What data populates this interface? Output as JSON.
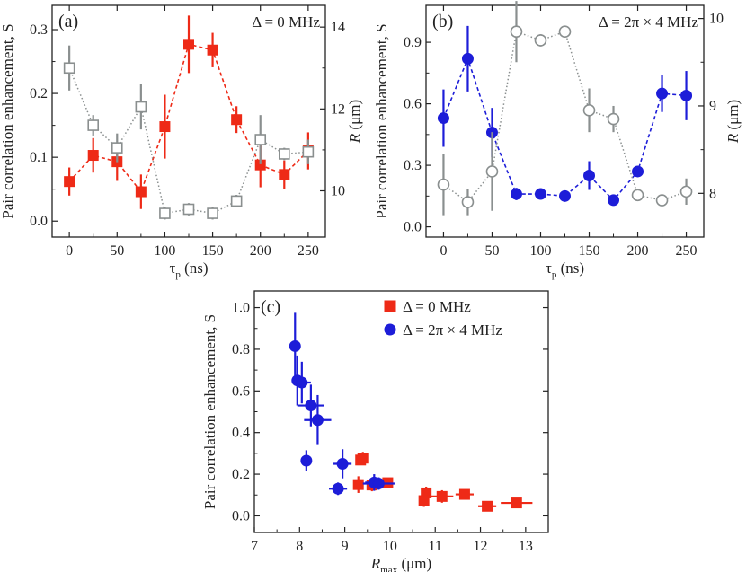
{
  "colors": {
    "red": "#ee2a17",
    "blue": "#1d1dd8",
    "gray": "#8a8f8f",
    "axis": "#222222"
  },
  "chart_data": [
    {
      "id": "a",
      "type": "scatter",
      "panel_label": "(a)",
      "annotation": "Δ = 0 MHz",
      "xlabel": {
        "main": "τ",
        "sub": "p",
        "unit": " (ns)"
      },
      "ylabel": "Pair correlation enhancement, S",
      "y2label": {
        "italic": "R",
        "unit": " (μm)"
      },
      "xlim": [
        -18,
        268
      ],
      "ylim": [
        -0.025,
        0.338
      ],
      "y2lim": [
        8.87,
        14.53
      ],
      "xticks": [
        0,
        50,
        100,
        150,
        200,
        250
      ],
      "yticks": [
        0.0,
        0.1,
        0.2,
        0.3
      ],
      "ytick_labels": [
        "0.0",
        "0.1",
        "0.2",
        "0.3"
      ],
      "y2ticks": [
        10,
        12,
        14
      ],
      "y2tick_labels": [
        "10",
        "12",
        "14"
      ],
      "series": [
        {
          "name": "S",
          "axis": "left",
          "marker": "square-filled",
          "color": "#ee2a17",
          "line": "dashed",
          "x": [
            0,
            25,
            50,
            75,
            100,
            125,
            150,
            175,
            200,
            225,
            250
          ],
          "y": [
            0.062,
            0.103,
            0.093,
            0.046,
            0.148,
            0.277,
            0.268,
            0.159,
            0.088,
            0.073,
            0.11
          ],
          "yerr": [
            0.022,
            0.027,
            0.03,
            0.027,
            0.05,
            0.045,
            0.027,
            0.021,
            0.035,
            0.022,
            0.029
          ]
        },
        {
          "name": "R",
          "axis": "right",
          "marker": "square-open",
          "color": "#8a8f8f",
          "line": "dotted",
          "x": [
            0,
            25,
            50,
            75,
            100,
            125,
            150,
            175,
            200,
            225,
            250
          ],
          "y": [
            13.0,
            11.6,
            11.05,
            12.05,
            9.45,
            9.55,
            9.45,
            9.75,
            11.25,
            10.9,
            10.95
          ],
          "yerr": [
            0.55,
            0.25,
            0.35,
            0.55,
            0.15,
            0.15,
            0.15,
            0.15,
            0.6,
            0.15,
            0.3
          ]
        }
      ]
    },
    {
      "id": "b",
      "type": "scatter",
      "panel_label": "(b)",
      "annotation": "Δ = 2π × 4 MHz",
      "xlabel": {
        "main": "τ",
        "sub": "p",
        "unit": " (ns)"
      },
      "ylabel": "Pair correlation enhancement, S",
      "y2label": {
        "italic": "R",
        "unit": " (μm)"
      },
      "xlim": [
        -18,
        268
      ],
      "ylim": [
        -0.05,
        1.08
      ],
      "y2lim": [
        7.5,
        10.15
      ],
      "xticks": [
        0,
        50,
        100,
        150,
        200,
        250
      ],
      "yticks": [
        0.0,
        0.3,
        0.6,
        0.9
      ],
      "ytick_labels": [
        "0.0",
        "0.3",
        "0.6",
        "0.9"
      ],
      "y2ticks": [
        8,
        9,
        10
      ],
      "y2tick_labels": [
        "8",
        "9",
        "10"
      ],
      "series": [
        {
          "name": "S",
          "axis": "left",
          "marker": "circle-filled",
          "color": "#1d1dd8",
          "line": "dashed",
          "x": [
            0,
            25,
            50,
            75,
            100,
            125,
            150,
            175,
            200,
            225,
            250
          ],
          "y": [
            0.53,
            0.82,
            0.46,
            0.16,
            0.16,
            0.15,
            0.25,
            0.13,
            0.27,
            0.65,
            0.64
          ],
          "yerr": [
            0.14,
            0.16,
            0.12,
            0.03,
            0.02,
            0.02,
            0.07,
            0.02,
            0.02,
            0.09,
            0.12
          ]
        },
        {
          "name": "R",
          "axis": "right",
          "marker": "circle-open",
          "color": "#8a8f8f",
          "line": "dotted",
          "x": [
            0,
            25,
            50,
            75,
            100,
            125,
            150,
            175,
            200,
            225,
            250
          ],
          "y": [
            8.1,
            7.9,
            8.25,
            9.85,
            9.75,
            9.85,
            8.95,
            8.85,
            7.98,
            7.92,
            8.02
          ],
          "yerr": [
            0.35,
            0.15,
            0.45,
            0.35,
            0.07,
            0.03,
            0.25,
            0.15,
            0.05,
            0.03,
            0.15
          ]
        }
      ]
    },
    {
      "id": "c",
      "type": "scatter",
      "panel_label": "(c)",
      "xlabel": {
        "italic": "R",
        "sub": "max",
        "unit": " (μm)"
      },
      "ylabel": "Pair correlation enhancement, S",
      "xlim": [
        7,
        13.5
      ],
      "ylim": [
        -0.08,
        1.08
      ],
      "xticks": [
        7,
        8,
        9,
        10,
        11,
        12,
        13
      ],
      "yticks": [
        0.0,
        0.2,
        0.4,
        0.6,
        0.8,
        1.0
      ],
      "ytick_labels": [
        "0.0",
        "0.2",
        "0.4",
        "0.6",
        "0.8",
        "1.0"
      ],
      "legend": {
        "position": "top-right",
        "entries": [
          {
            "label": "Δ = 0 MHz",
            "marker": "square-filled",
            "color": "#ee2a17"
          },
          {
            "label": "Δ = 2π × 4 MHz",
            "marker": "circle-filled",
            "color": "#1d1dd8"
          }
        ]
      },
      "series": [
        {
          "name": "Δ = 0 MHz",
          "marker": "square-filled",
          "color": "#ee2a17",
          "x": [
            12.8,
            12.15,
            11.65,
            11.15,
            10.8,
            10.75,
            9.95,
            9.6,
            9.4,
            9.35,
            9.3
          ],
          "y": [
            0.062,
            0.046,
            0.103,
            0.093,
            0.11,
            0.073,
            0.159,
            0.148,
            0.277,
            0.268,
            0.15
          ],
          "xerr": [
            0.35,
            0.2,
            0.2,
            0.25,
            0.1,
            0.1,
            0.1,
            0.1,
            0.1,
            0.1,
            0.1
          ],
          "yerr": [
            0.02,
            0.02,
            0.02,
            0.03,
            0.03,
            0.03,
            0.02,
            0.03,
            0.03,
            0.02,
            0.04
          ]
        },
        {
          "name": "Δ = 2π × 4 MHz",
          "marker": "circle-filled",
          "color": "#1d1dd8",
          "x": [
            7.9,
            7.95,
            8.05,
            8.25,
            8.4,
            8.15,
            8.95,
            8.85,
            9.65,
            9.75
          ],
          "y": [
            0.815,
            0.65,
            0.64,
            0.53,
            0.46,
            0.265,
            0.25,
            0.13,
            0.16,
            0.155
          ],
          "xerr": [
            0.1,
            0.1,
            0.2,
            0.3,
            0.3,
            0.1,
            0.2,
            0.2,
            0.2,
            0.35
          ],
          "yerr": [
            0.16,
            0.12,
            0.1,
            0.1,
            0.12,
            0.05,
            0.07,
            0.03,
            0.04,
            0.03
          ]
        }
      ]
    }
  ]
}
